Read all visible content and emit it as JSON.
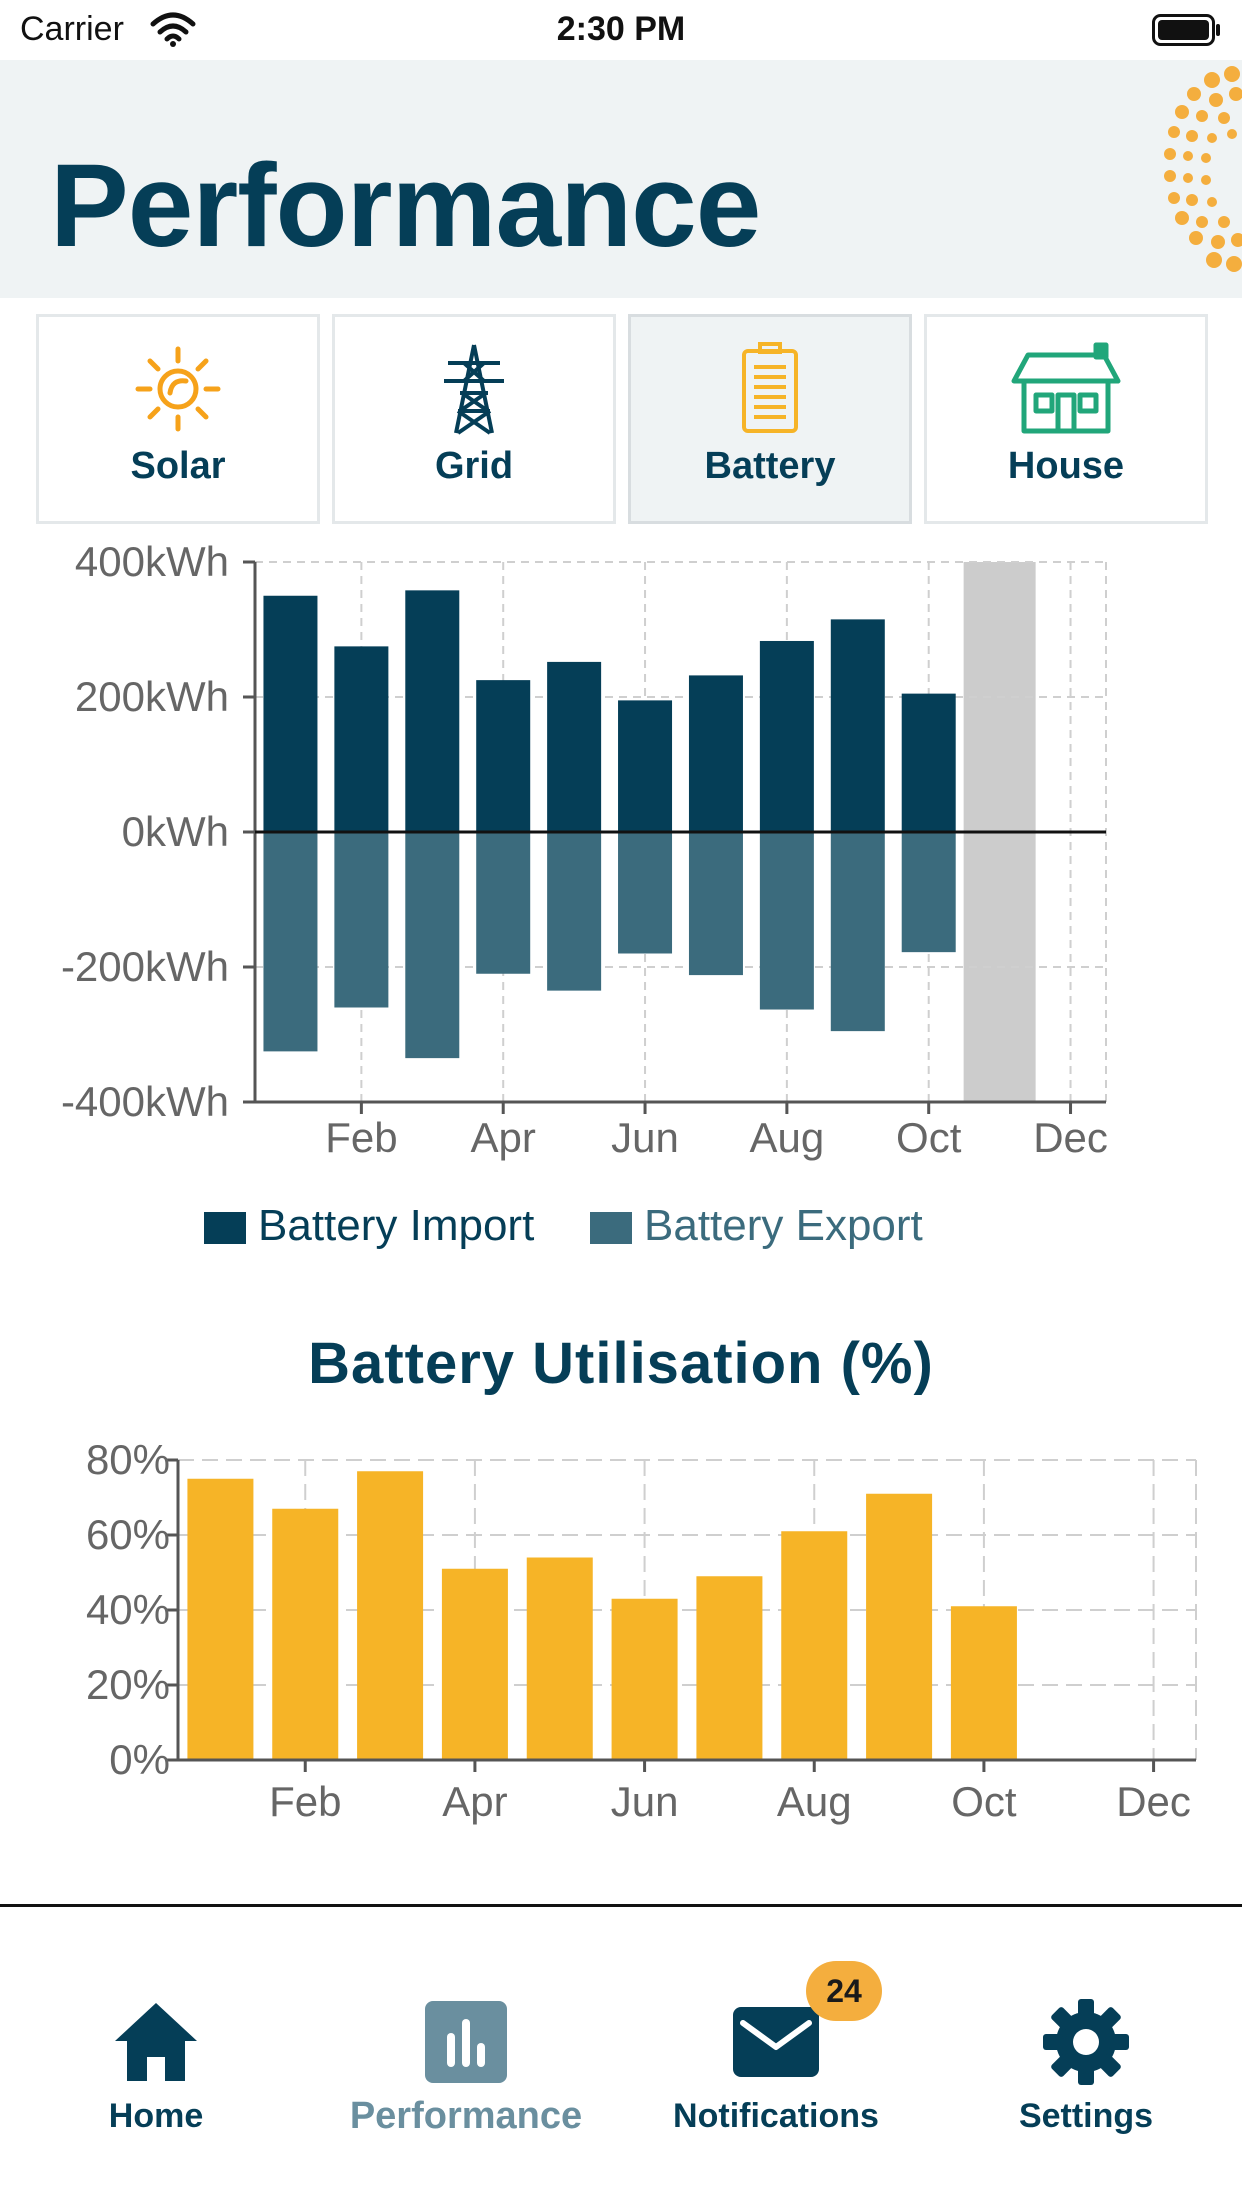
{
  "status_bar": {
    "carrier": "Carrier",
    "time": "2:30 PM"
  },
  "header": {
    "title": "Performance"
  },
  "tabs": [
    {
      "label": "Solar",
      "icon": "sun-icon",
      "active": false
    },
    {
      "label": "Grid",
      "icon": "pylon-icon",
      "active": false
    },
    {
      "label": "Battery",
      "icon": "battery-icon",
      "active": true
    },
    {
      "label": "House",
      "icon": "house-icon",
      "active": false
    }
  ],
  "colors": {
    "import": "#053e57",
    "export": "#3b6b7d",
    "utilisation": "#f6b427",
    "future": "#cccccc",
    "brand_orange": "#f4ae3e",
    "text_dark": "#053e57"
  },
  "chart_data": [
    {
      "type": "bar",
      "months": [
        1,
        2,
        3,
        4,
        5,
        6,
        7,
        8,
        9,
        10,
        11,
        12
      ],
      "x_tick_labels": [
        "Feb",
        "Apr",
        "Jun",
        "Aug",
        "Oct",
        "Dec"
      ],
      "y_tick_labels": [
        "400kWh",
        "200kWh",
        "0kWh",
        "-200kWh",
        "-400kWh"
      ],
      "ylim": [
        -400,
        400
      ],
      "grid": true,
      "legend_position": "bottom",
      "series": [
        {
          "name": "Battery Import",
          "values": [
            350,
            275,
            358,
            225,
            252,
            195,
            232,
            283,
            315,
            205,
            null,
            null
          ]
        },
        {
          "name": "Battery Export",
          "values": [
            -325,
            -260,
            -335,
            -210,
            -235,
            -180,
            -212,
            -263,
            -295,
            -178,
            null,
            null
          ]
        }
      ],
      "highlight_month": 11
    },
    {
      "type": "bar",
      "title": "Battery Utilisation (%)",
      "months": [
        1,
        2,
        3,
        4,
        5,
        6,
        7,
        8,
        9,
        10,
        11,
        12
      ],
      "x_tick_labels": [
        "Feb",
        "Apr",
        "Jun",
        "Aug",
        "Oct",
        "Dec"
      ],
      "y_tick_labels": [
        "80%",
        "60%",
        "40%",
        "20%",
        "0%"
      ],
      "ylim": [
        0,
        80
      ],
      "grid": true,
      "values": [
        75,
        67,
        77,
        51,
        54,
        43,
        49,
        61,
        71,
        41,
        null,
        null
      ]
    }
  ],
  "bottom_nav": [
    {
      "label": "Home",
      "icon": "home-icon",
      "active": false
    },
    {
      "label": "Performance",
      "icon": "chart-icon",
      "active": true
    },
    {
      "label": "Notifications",
      "icon": "mail-icon",
      "active": false,
      "badge": "24"
    },
    {
      "label": "Settings",
      "icon": "gear-icon",
      "active": false
    }
  ]
}
